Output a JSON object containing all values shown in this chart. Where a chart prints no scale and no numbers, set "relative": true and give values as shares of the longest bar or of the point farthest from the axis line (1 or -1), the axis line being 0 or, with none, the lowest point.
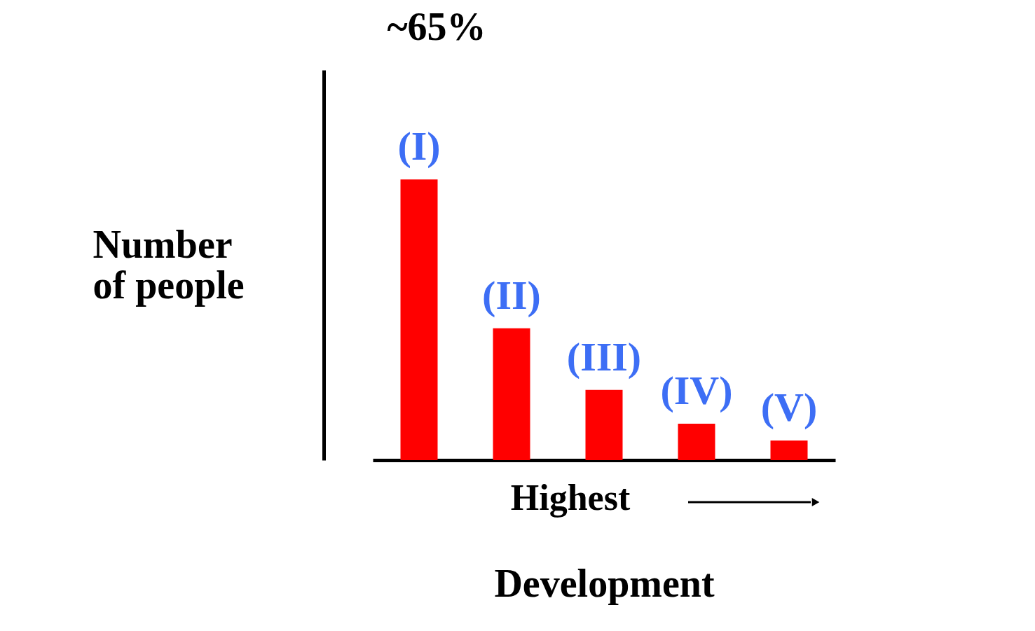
{
  "chart_data": {
    "type": "bar",
    "relative": true,
    "categories": [
      "(I)",
      "(II)",
      "(III)",
      "(IV)",
      "(V)"
    ],
    "values": [
      1,
      0.47,
      0.25,
      0.13,
      0.07
    ],
    "color": "#ff0000",
    "ylabel": "Number of people",
    "xlabel": "Development",
    "annotations": [
      "~65%",
      "Highest"
    ],
    "grid": false
  }
}
